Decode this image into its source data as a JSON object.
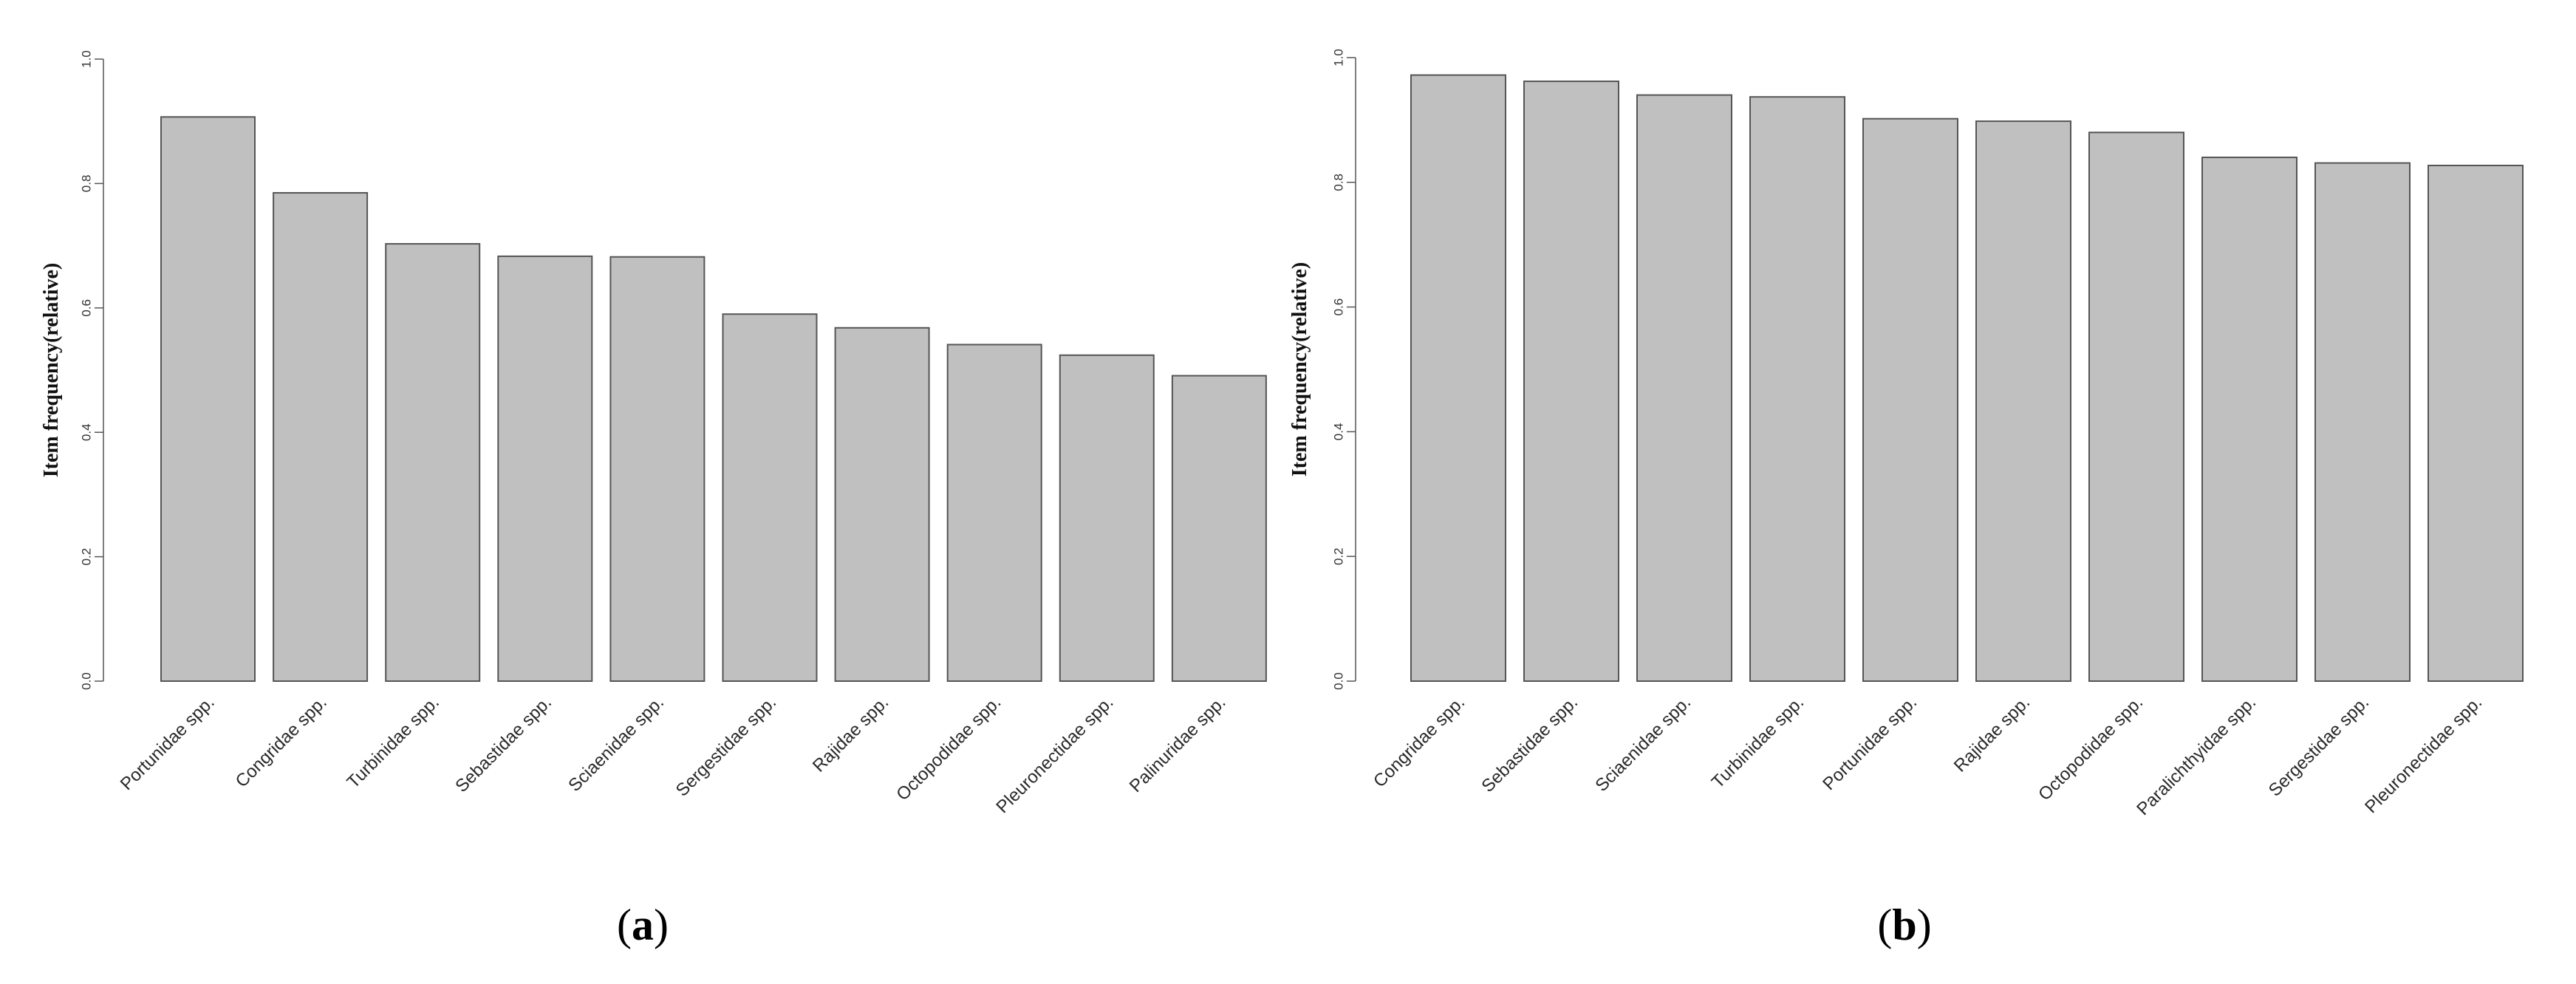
{
  "figure": {
    "bar_fill": "#c0c0c0",
    "bar_stroke": "#555555",
    "axis_color": "#555555"
  },
  "chart_data": [
    {
      "type": "bar",
      "panel_label": "a",
      "ylabel": "Item frequency(relative)",
      "ylim": [
        0,
        1.0
      ],
      "yticks": [
        "0.0",
        "0.2",
        "0.4",
        "0.6",
        "0.8",
        "1.0"
      ],
      "categories": [
        "Portunidae spp.",
        "Congridae spp.",
        "Turbinidae spp.",
        "Sebastidae spp.",
        "Sciaenidae spp.",
        "Sergestidae spp.",
        "Rajidae spp.",
        "Octopodidae spp.",
        "Pleuronectidae spp.",
        "Palinuridae spp."
      ],
      "values": [
        0.907,
        0.785,
        0.703,
        0.683,
        0.682,
        0.59,
        0.568,
        0.541,
        0.524,
        0.491
      ],
      "grid": false
    },
    {
      "type": "bar",
      "panel_label": "b",
      "ylabel": "Item frequency(relative)",
      "ylim": [
        0,
        1.0
      ],
      "yticks": [
        "0.0",
        "0.2",
        "0.4",
        "0.6",
        "0.8",
        "1.0"
      ],
      "categories": [
        "Congridae spp.",
        "Sebastidae spp.",
        "Sciaenidae spp.",
        "Turbinidae spp.",
        "Portunidae spp.",
        "Rajidae spp.",
        "Octopodidae spp.",
        "Paralichthyidae spp.",
        "Sergestidae spp.",
        "Pleuronectidae spp."
      ],
      "values": [
        0.972,
        0.962,
        0.94,
        0.937,
        0.902,
        0.898,
        0.88,
        0.84,
        0.831,
        0.827
      ],
      "grid": false
    }
  ]
}
